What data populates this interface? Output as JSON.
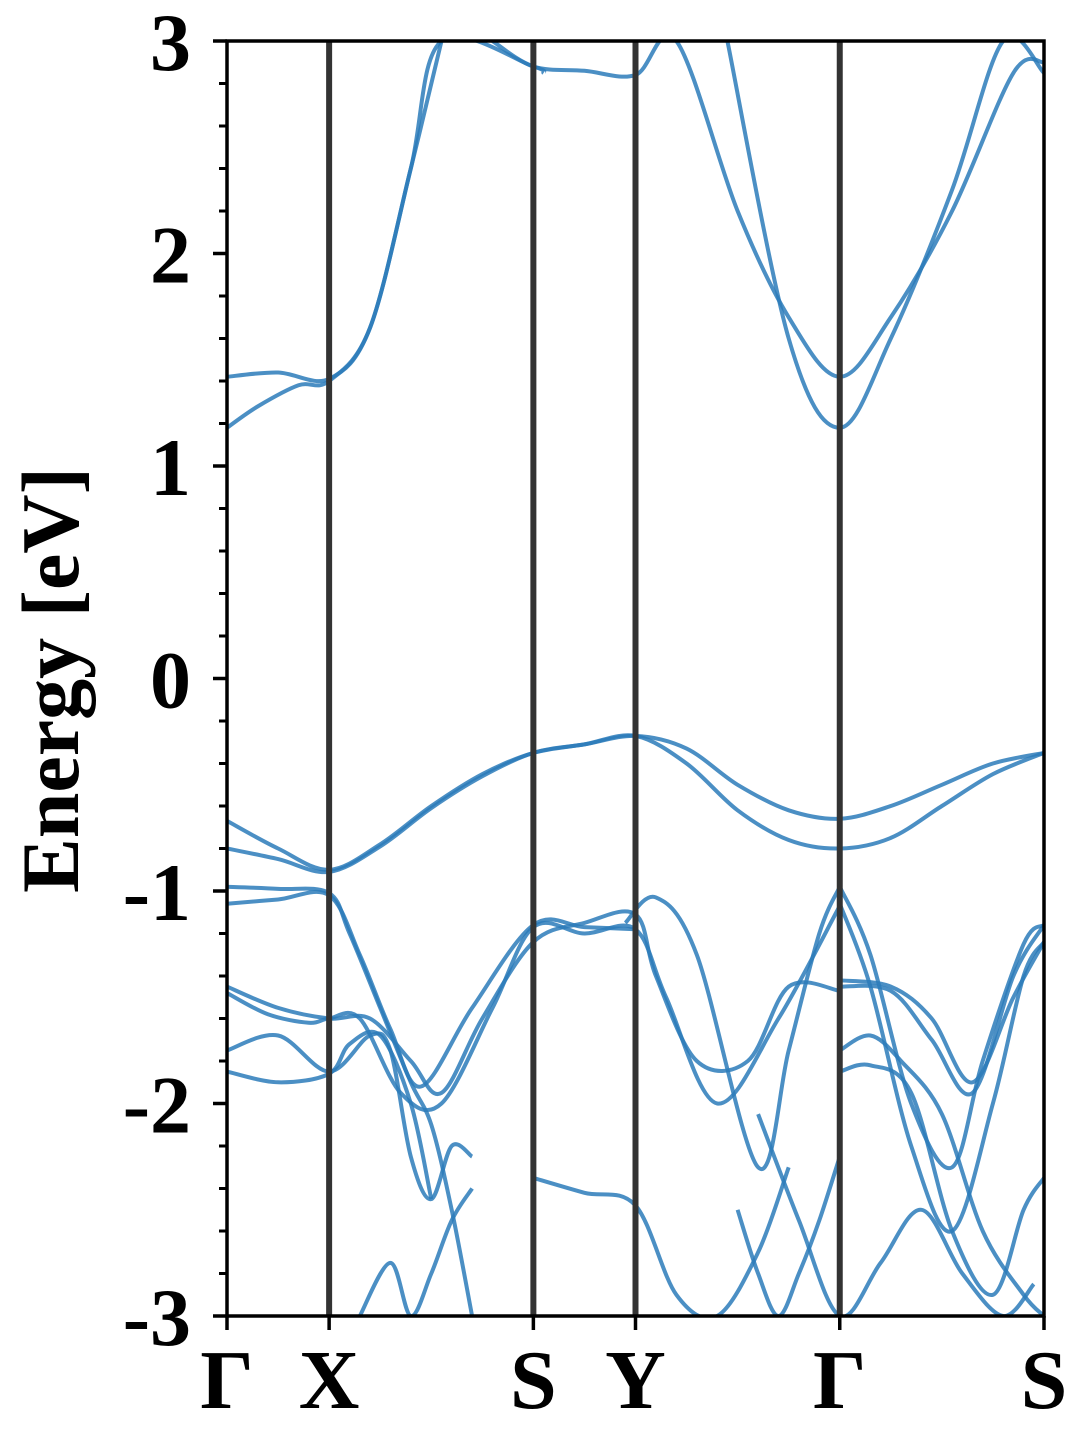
{
  "chart_data": {
    "type": "line",
    "title": "",
    "xlabel": "",
    "ylabel": "Energy [eV]",
    "ylim": [
      -3,
      3
    ],
    "y_ticks": [
      -3,
      -2,
      -1,
      0,
      1,
      2,
      3
    ],
    "y_tick_labels": [
      "-3",
      "-2",
      "-1",
      "0",
      "1",
      "2",
      "3"
    ],
    "y_minor_step": 0.2,
    "k_points": [
      {
        "label": "Γ",
        "x": 0.0
      },
      {
        "label": "X",
        "x": 0.5
      },
      {
        "label": "S",
        "x": 1.5
      },
      {
        "label": "Y",
        "x": 2.0
      },
      {
        "label": "Γ",
        "x": 3.0
      },
      {
        "label": "S",
        "x": 4.0
      }
    ],
    "xlim": [
      0,
      4
    ],
    "grid": false,
    "line_color": "#2b7bba",
    "vline_color": "#333333",
    "series": [
      {
        "x": [
          0,
          0.25,
          0.5,
          0.7,
          0.9,
          1.05,
          1.5,
          1.55
        ],
        "values": [
          1.42,
          1.44,
          1.41,
          1.65,
          2.4,
          3.0,
          2.88,
          2.85
        ]
      },
      {
        "x": [
          0,
          0.15,
          0.35,
          0.5,
          0.7,
          0.9,
          1.05
        ],
        "values": [
          1.18,
          1.28,
          1.38,
          1.4,
          1.65,
          2.4,
          3.0
        ]
      },
      {
        "x": [
          1.3,
          1.5,
          1.75,
          2.0,
          2.2,
          2.5,
          2.75,
          3.0,
          3.25,
          3.55,
          3.85,
          4.0
        ],
        "values": [
          3.0,
          2.88,
          2.86,
          2.84,
          3.0,
          2.2,
          1.7,
          1.42,
          1.7,
          2.2,
          2.85,
          2.9
        ]
      },
      {
        "x": [
          2.45,
          2.75,
          3.0,
          3.25,
          3.55,
          3.8,
          4.0
        ],
        "values": [
          3.0,
          1.6,
          1.18,
          1.6,
          2.3,
          3.0,
          2.85
        ]
      },
      {
        "x": [
          0,
          0.25,
          0.5,
          0.75,
          1.0,
          1.25,
          1.5,
          1.75,
          2.0,
          2.25,
          2.5,
          2.75,
          3.0,
          3.25,
          3.5,
          3.75,
          4.0
        ],
        "values": [
          -0.67,
          -0.8,
          -0.9,
          -0.78,
          -0.6,
          -0.45,
          -0.35,
          -0.31,
          -0.27,
          -0.33,
          -0.5,
          -0.62,
          -0.66,
          -0.6,
          -0.5,
          -0.4,
          -0.35
        ]
      },
      {
        "x": [
          0,
          0.25,
          0.5,
          0.75,
          1.0,
          1.25,
          1.5,
          1.75,
          2.0,
          2.25,
          2.5,
          2.75,
          3.0,
          3.25,
          3.5,
          3.75,
          4.0
        ],
        "values": [
          -0.8,
          -0.85,
          -0.91,
          -0.79,
          -0.61,
          -0.46,
          -0.35,
          -0.31,
          -0.27,
          -0.4,
          -0.62,
          -0.76,
          -0.8,
          -0.75,
          -0.6,
          -0.45,
          -0.35
        ]
      },
      {
        "x": [
          0,
          0.25,
          0.5,
          0.6,
          0.75,
          0.9,
          1.0,
          1.1,
          1.2
        ],
        "values": [
          -0.98,
          -0.99,
          -1.01,
          -1.2,
          -1.55,
          -1.9,
          -2.1,
          -2.5,
          -3.0
        ]
      },
      {
        "x": [
          0,
          0.25,
          0.5,
          0.65,
          0.8,
          0.95,
          1.2,
          1.5,
          1.75,
          2.0
        ],
        "values": [
          -1.06,
          -1.04,
          -1.02,
          -1.3,
          -1.65,
          -1.92,
          -1.55,
          -1.16,
          -1.17,
          -1.18
        ]
      },
      {
        "x": [
          0,
          0.25,
          0.5,
          0.7,
          0.9,
          1.05,
          1.25,
          1.5,
          1.75,
          2.0,
          2.1,
          2.3,
          2.55,
          2.75,
          3.0
        ],
        "values": [
          -1.45,
          -1.55,
          -1.6,
          -1.6,
          -1.8,
          -1.95,
          -1.6,
          -1.24,
          -1.15,
          -1.11,
          -1.4,
          -1.8,
          -1.8,
          -1.45,
          -1.47
        ]
      },
      {
        "x": [
          0,
          0.2,
          0.4,
          0.5,
          0.65,
          0.85,
          1.05,
          1.3,
          1.5,
          1.75,
          2.0,
          2.15,
          2.4,
          2.7,
          3.0
        ],
        "values": [
          -1.48,
          -1.58,
          -1.62,
          -1.6,
          -1.6,
          -1.95,
          -2.0,
          -1.55,
          -1.17,
          -1.2,
          -1.18,
          -1.5,
          -2.0,
          -1.6,
          -1.07
        ]
      },
      {
        "x": [
          0,
          0.25,
          0.5,
          0.7,
          0.8,
          0.9,
          1.0,
          1.1,
          1.2
        ],
        "values": [
          -1.75,
          -1.68,
          -1.85,
          -1.68,
          -1.75,
          -2.25,
          -2.45,
          -2.2,
          -2.25
        ]
      },
      {
        "x": [
          0,
          0.25,
          0.5,
          0.6,
          0.75,
          0.9,
          1.0
        ],
        "values": [
          -1.85,
          -1.9,
          -1.86,
          -1.72,
          -1.68,
          -2.0,
          -2.45
        ]
      },
      {
        "x": [
          1.5,
          1.75,
          2.0,
          2.2,
          2.4,
          2.6,
          2.75
        ],
        "values": [
          -2.35,
          -2.42,
          -2.48,
          -2.9,
          -3.0,
          -2.7,
          -2.3
        ]
      },
      {
        "x": [
          1.95,
          2.1,
          2.3,
          2.6,
          2.75,
          2.9,
          3.0
        ],
        "values": [
          -1.15,
          -1.03,
          -1.3,
          -2.3,
          -1.75,
          -1.2,
          -0.98
        ]
      },
      {
        "x": [
          3.0,
          3.15,
          3.35,
          3.55,
          3.7,
          3.9,
          4.0
        ],
        "values": [
          -0.98,
          -1.3,
          -2.0,
          -2.3,
          -1.8,
          -1.25,
          -1.16
        ]
      },
      {
        "x": [
          3.0,
          3.15,
          3.35,
          3.55,
          3.75,
          3.9,
          4.0
        ],
        "values": [
          -1.06,
          -1.45,
          -2.2,
          -2.6,
          -2.0,
          -1.4,
          -1.24
        ]
      },
      {
        "x": [
          3.0,
          3.25,
          3.45,
          3.65,
          3.85,
          4.0
        ],
        "values": [
          -1.45,
          -1.47,
          -1.7,
          -1.95,
          -1.4,
          -1.16
        ]
      },
      {
        "x": [
          3.0,
          3.25,
          3.45,
          3.65,
          3.85,
          4.0
        ],
        "values": [
          -1.42,
          -1.45,
          -1.6,
          -1.9,
          -1.5,
          -1.24
        ]
      },
      {
        "x": [
          3.0,
          3.15,
          3.3,
          3.5,
          3.7,
          3.9,
          4.0
        ],
        "values": [
          -1.75,
          -1.68,
          -1.8,
          -2.05,
          -2.6,
          -2.9,
          -3.0
        ]
      },
      {
        "x": [
          3.0,
          3.15,
          3.35,
          3.55,
          3.75,
          3.9,
          4.0
        ],
        "values": [
          -1.85,
          -1.82,
          -1.95,
          -2.6,
          -2.9,
          -2.5,
          -2.35
        ]
      },
      {
        "x": [
          2.6,
          2.8,
          3.0,
          3.2,
          3.4,
          3.6,
          3.8,
          3.95
        ],
        "values": [
          -2.05,
          -2.55,
          -3.0,
          -2.75,
          -2.5,
          -2.8,
          -3.0,
          -2.85
        ]
      },
      {
        "x": [
          2.5,
          2.6,
          2.7,
          2.8,
          2.9,
          3.0
        ],
        "values": [
          -2.5,
          -2.8,
          -3.0,
          -2.8,
          -2.55,
          -2.25
        ]
      },
      {
        "x": [
          0.65,
          0.8,
          0.9,
          1.0,
          1.1,
          1.2
        ],
        "values": [
          -3.0,
          -2.75,
          -3.0,
          -2.8,
          -2.55,
          -2.4
        ]
      }
    ]
  }
}
